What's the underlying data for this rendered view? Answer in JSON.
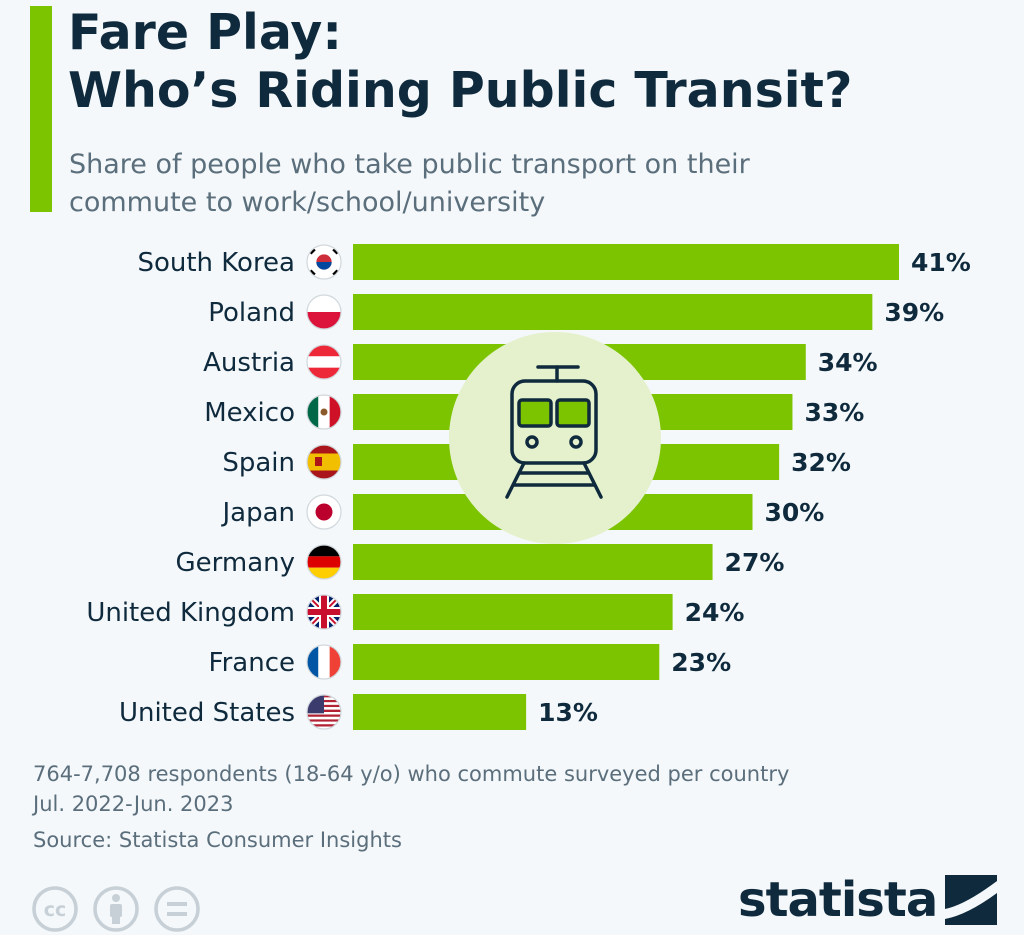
{
  "header": {
    "title_line1": "Fare Play:",
    "title_line2": "Who’s Riding Public Transit?",
    "subtitle_line1": "Share of people who take public transport on their",
    "subtitle_line2": "commute to work/school/university"
  },
  "chart_data": {
    "type": "bar",
    "orientation": "horizontal",
    "categories": [
      "South Korea",
      "Poland",
      "Austria",
      "Mexico",
      "Spain",
      "Japan",
      "Germany",
      "United Kingdom",
      "France",
      "United States"
    ],
    "values": [
      41,
      39,
      34,
      33,
      32,
      30,
      27,
      24,
      23,
      13
    ],
    "value_labels": [
      "41%",
      "39%",
      "34%",
      "33%",
      "32%",
      "30%",
      "27%",
      "24%",
      "23%",
      "13%"
    ],
    "unit": "%",
    "xlim": [
      0,
      41
    ],
    "grid": false,
    "legend": "none",
    "bar_color": "#7dc400"
  },
  "flags": [
    "south-korea",
    "poland",
    "austria",
    "mexico",
    "spain",
    "japan",
    "germany",
    "united-kingdom",
    "france",
    "united-states"
  ],
  "center_icon": "train-icon",
  "footer": {
    "note_line1": "764-7,708 respondents (18-64 y/o) who commute surveyed per country",
    "note_line2": "Jul. 2022-Jun. 2023",
    "source": "Source: Statista Consumer Insights"
  },
  "license_icons": [
    "cc-icon",
    "attribution-icon",
    "no-derivatives-icon"
  ],
  "brand": {
    "name": "statista"
  },
  "colors": {
    "accent": "#7dc400",
    "title": "#0f2a3d",
    "muted": "#5b6e7c",
    "icon_circle": "#e4f1cc",
    "background": "#f4f8fa"
  }
}
